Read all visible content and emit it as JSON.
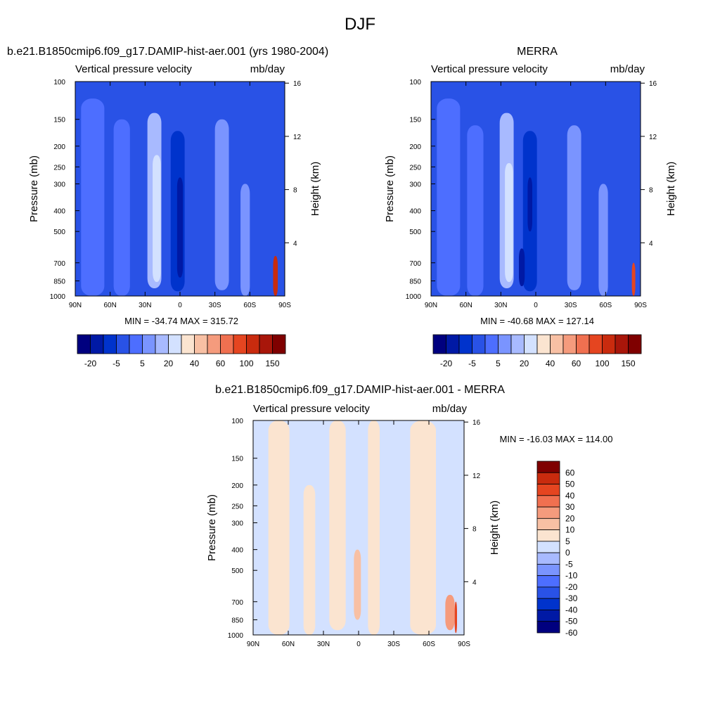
{
  "figure": {
    "title": "DJF"
  },
  "colors": {
    "abs_scale": [
      "#00007f",
      "#0019a5",
      "#0033cc",
      "#2952e6",
      "#4d6eff",
      "#7a94ff",
      "#a8baff",
      "#d3e1ff",
      "#fbe4d0",
      "#f8c0a4",
      "#f59b7d",
      "#f07050",
      "#e54520",
      "#c92b0e",
      "#a8160a",
      "#7f0000"
    ],
    "diff_scale": [
      "#00007f",
      "#0019a5",
      "#0033cc",
      "#2952e6",
      "#4d6eff",
      "#7a94ff",
      "#a8baff",
      "#d3e1ff",
      "#fbe4d0",
      "#f8c0a4",
      "#f59b7d",
      "#f07050",
      "#e54520",
      "#c92b0e",
      "#7f0000"
    ]
  },
  "panels": [
    {
      "id": "model",
      "title": "b.e21.B1850cmip6.f09_g17.DAMIP-hist-aer.001 (yrs 1980-2004)",
      "left_label": "Vertical pressure velocity",
      "right_label": "mb/day",
      "stats": "MIN = -34.74  MAX = 315.72"
    },
    {
      "id": "obs",
      "title": "MERRA",
      "left_label": "Vertical pressure velocity",
      "right_label": "mb/day",
      "stats": "MIN = -40.68  MAX = 127.14"
    },
    {
      "id": "diff",
      "title": "b.e21.B1850cmip6.f09_g17.DAMIP-hist-aer.001 - MERRA",
      "left_label": "Vertical pressure velocity",
      "right_label": "mb/day",
      "stats": "MIN = -16.03  MAX = 114.00"
    }
  ],
  "chart_data": [
    {
      "type": "heatmap",
      "panel": "model",
      "title": "b.e21.B1850cmip6.f09_g17.DAMIP-hist-aer.001 (yrs 1980-2004)",
      "ylabel": "Pressure (mb)",
      "y2label": "Height (km)",
      "xticks": [
        "90N",
        "60N",
        "30N",
        "0",
        "30S",
        "60S",
        "90S"
      ],
      "xlim": [
        90,
        -90
      ],
      "yticks": [
        100,
        150,
        200,
        250,
        300,
        400,
        500,
        700,
        850,
        1000
      ],
      "ylim": [
        1000,
        100
      ],
      "yscale": "log",
      "y2ticks": [
        4,
        8,
        12,
        16
      ],
      "colorbar": {
        "levels": [
          -20,
          -5,
          5,
          20,
          40,
          60,
          100,
          150
        ],
        "orientation": "horizontal"
      },
      "stats": {
        "min": -34.74,
        "max": 315.72
      },
      "bands": [
        {
          "lat": 75,
          "width": 20,
          "p_top": 120,
          "p_bottom": 1000,
          "level": 4
        },
        {
          "lat": 50,
          "width": 14,
          "p_top": 150,
          "p_bottom": 1000,
          "level": 4
        },
        {
          "lat": 22,
          "width": 12,
          "p_top": 140,
          "p_bottom": 920,
          "level": 6
        },
        {
          "lat": 20,
          "width": 7,
          "p_top": 220,
          "p_bottom": 860,
          "level": 7
        },
        {
          "lat": 2,
          "width": 12,
          "p_top": 170,
          "p_bottom": 950,
          "level": 2
        },
        {
          "lat": 0,
          "width": 5,
          "p_top": 280,
          "p_bottom": 820,
          "level": 1
        },
        {
          "lat": -36,
          "width": 12,
          "p_top": 150,
          "p_bottom": 940,
          "level": 5
        },
        {
          "lat": -56,
          "width": 8,
          "p_top": 300,
          "p_bottom": 1000,
          "level": 5
        },
        {
          "lat": -82,
          "width": 4,
          "p_top": 650,
          "p_bottom": 1000,
          "level": 13
        }
      ]
    },
    {
      "type": "heatmap",
      "panel": "obs",
      "title": "MERRA",
      "ylabel": "Pressure (mb)",
      "y2label": "Height (km)",
      "xticks": [
        "90N",
        "60N",
        "30N",
        "0",
        "30S",
        "60S",
        "90S"
      ],
      "xlim": [
        90,
        -90
      ],
      "yticks": [
        100,
        150,
        200,
        250,
        300,
        400,
        500,
        700,
        850,
        1000
      ],
      "ylim": [
        1000,
        100
      ],
      "yscale": "log",
      "y2ticks": [
        4,
        8,
        12,
        16
      ],
      "colorbar": {
        "levels": [
          -20,
          -5,
          5,
          20,
          40,
          60,
          100,
          150
        ],
        "orientation": "horizontal"
      },
      "stats": {
        "min": -40.68,
        "max": 127.14
      },
      "bands": [
        {
          "lat": 75,
          "width": 20,
          "p_top": 120,
          "p_bottom": 1000,
          "level": 4
        },
        {
          "lat": 52,
          "width": 14,
          "p_top": 160,
          "p_bottom": 1000,
          "level": 4
        },
        {
          "lat": 25,
          "width": 12,
          "p_top": 140,
          "p_bottom": 920,
          "level": 6
        },
        {
          "lat": 23,
          "width": 7,
          "p_top": 240,
          "p_bottom": 860,
          "level": 7
        },
        {
          "lat": 5,
          "width": 12,
          "p_top": 170,
          "p_bottom": 950,
          "level": 2
        },
        {
          "lat": 5,
          "width": 4,
          "p_top": 280,
          "p_bottom": 500,
          "level": 1
        },
        {
          "lat": 12,
          "width": 5,
          "p_top": 600,
          "p_bottom": 900,
          "level": 1
        },
        {
          "lat": -33,
          "width": 12,
          "p_top": 160,
          "p_bottom": 940,
          "level": 5
        },
        {
          "lat": -58,
          "width": 8,
          "p_top": 300,
          "p_bottom": 1000,
          "level": 5
        },
        {
          "lat": -84,
          "width": 3,
          "p_top": 700,
          "p_bottom": 1000,
          "level": 12
        }
      ]
    },
    {
      "type": "heatmap",
      "panel": "diff",
      "title": "b.e21.B1850cmip6.f09_g17.DAMIP-hist-aer.001 - MERRA",
      "ylabel": "Pressure (mb)",
      "y2label": "Height (km)",
      "xticks": [
        "90N",
        "60N",
        "30N",
        "0",
        "30S",
        "60S",
        "90S"
      ],
      "xlim": [
        90,
        -90
      ],
      "yticks": [
        100,
        150,
        200,
        250,
        300,
        400,
        500,
        700,
        850,
        1000
      ],
      "ylim": [
        1000,
        100
      ],
      "yscale": "log",
      "y2ticks": [
        4,
        8,
        12,
        16
      ],
      "colorbar": {
        "levels": [
          60,
          50,
          40,
          30,
          20,
          10,
          5,
          0,
          -5,
          -10,
          -20,
          -30,
          -40,
          -50,
          -60
        ],
        "orientation": "vertical"
      },
      "stats": {
        "min": -16.03,
        "max": 114.0
      },
      "bands": [
        {
          "lat": 68,
          "width": 18,
          "p_top": 100,
          "p_bottom": 1000,
          "level": 8
        },
        {
          "lat": 42,
          "width": 10,
          "p_top": 200,
          "p_bottom": 1000,
          "level": 8
        },
        {
          "lat": 18,
          "width": 14,
          "p_top": 100,
          "p_bottom": 950,
          "level": 8
        },
        {
          "lat": 1,
          "width": 6,
          "p_top": 400,
          "p_bottom": 850,
          "level": 9
        },
        {
          "lat": -13,
          "width": 10,
          "p_top": 100,
          "p_bottom": 1000,
          "level": 8
        },
        {
          "lat": -55,
          "width": 22,
          "p_top": 100,
          "p_bottom": 1000,
          "level": 8
        },
        {
          "lat": -78,
          "width": 8,
          "p_top": 650,
          "p_bottom": 950,
          "level": 10
        },
        {
          "lat": -83,
          "width": 2,
          "p_top": 700,
          "p_bottom": 980,
          "level": 12
        }
      ]
    }
  ]
}
